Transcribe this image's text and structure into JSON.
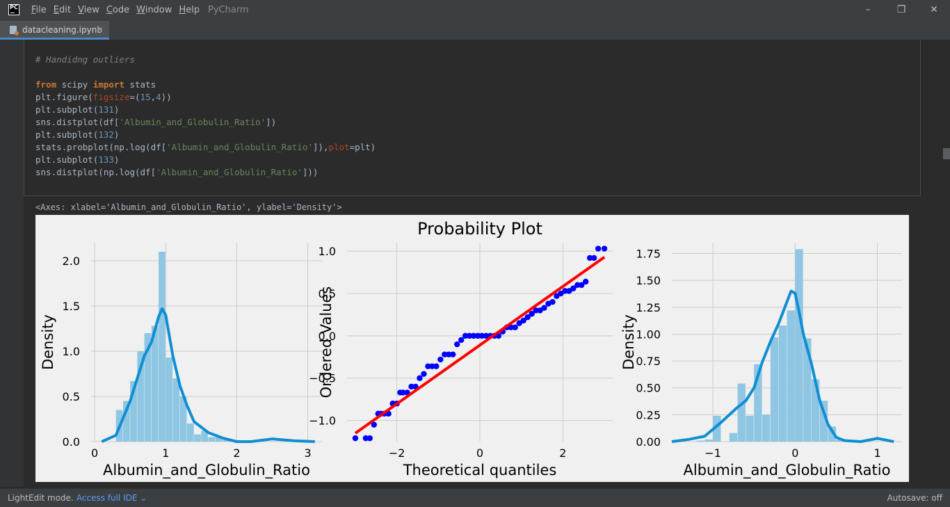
{
  "window": {
    "logo": "PC",
    "menu": [
      "File",
      "Edit",
      "View",
      "Code",
      "Window",
      "Help"
    ],
    "app_title": "PyCharm",
    "controls": {
      "minimize": "–",
      "restore": "❐",
      "close": "✕"
    }
  },
  "tab": {
    "file_name": "datacleaning.ipynb",
    "close": "×"
  },
  "code": {
    "comment": "# Handidng outliers",
    "lines": [
      "from scipy import stats",
      "plt.figure(figsize=(15,4))",
      "plt.subplot(131)",
      "sns.distplot(df['Albumin_and_Globulin_Ratio'])",
      "plt.subplot(132)",
      "stats.probplot(np.log(df['Albumin_and_Globulin_Ratio']),plot=plt)",
      "plt.subplot(133)",
      "sns.distplot(np.log(df['Albumin_and_Globulin_Ratio']))"
    ]
  },
  "output": {
    "text": "<Axes: xlabel='Albumin_and_Globulin_Ratio', ylabel='Density'>"
  },
  "status": {
    "mode": "LightEdit mode.",
    "link": "Access full IDE ⌄",
    "autosave": "Autosave: off"
  },
  "colors": {
    "hist": "#8fc6e4",
    "kde": "#0f8ed2",
    "points": "#0000ff",
    "fit_line": "#ff0000"
  },
  "chart_data": [
    {
      "type": "bar",
      "title": "",
      "xlabel": "Albumin_and_Globulin_Ratio",
      "ylabel": "Density",
      "xlim": [
        -0.05,
        3.2
      ],
      "ylim": [
        0,
        2.2
      ],
      "xticks": [
        "0",
        "1",
        "2",
        "3"
      ],
      "yticks": [
        "0.0",
        "0.5",
        "1.0",
        "1.5",
        "2.0"
      ],
      "bin_width": 0.1,
      "bin_starts": [
        0.3,
        0.4,
        0.5,
        0.6,
        0.7,
        0.8,
        0.9,
        1.0,
        1.1,
        1.2,
        1.3,
        1.4,
        1.5,
        1.6,
        1.7,
        1.8,
        1.9
      ],
      "bin_values": [
        0.35,
        0.45,
        0.67,
        1.0,
        1.2,
        1.28,
        2.1,
        0.93,
        0.7,
        0.5,
        0.2,
        0.08,
        0.12,
        0.05,
        0.05,
        0.02,
        0.02
      ],
      "kde": {
        "x": [
          0.1,
          0.3,
          0.5,
          0.7,
          0.8,
          0.9,
          0.95,
          1.0,
          1.1,
          1.2,
          1.3,
          1.4,
          1.6,
          1.8,
          2.0,
          2.2,
          2.5,
          2.8,
          3.1
        ],
        "y": [
          0.0,
          0.07,
          0.45,
          0.95,
          1.1,
          1.38,
          1.47,
          1.4,
          0.95,
          0.62,
          0.4,
          0.22,
          0.1,
          0.04,
          0.0,
          0.0,
          0.03,
          0.01,
          0.0
        ]
      },
      "grid": true
    },
    {
      "type": "scatter",
      "title": "Probability Plot",
      "xlabel": "Theoretical quantiles",
      "ylabel": "Ordered Values",
      "xlim": [
        -3.2,
        3.2
      ],
      "ylim": [
        -1.25,
        1.1
      ],
      "xticks": [
        -2,
        0,
        2
      ],
      "yticks": [
        -1.0,
        -0.5,
        0.0,
        0.5,
        1.0
      ],
      "series": [
        {
          "x": [
            -3.0,
            -2.75,
            -2.65,
            -2.55,
            -2.45,
            -2.38,
            -2.3,
            -2.2,
            -2.1,
            -2.0,
            -1.92,
            -1.85,
            -1.75,
            -1.65,
            -1.55,
            -1.45,
            -1.35,
            -1.25,
            -1.15,
            -1.05,
            -0.95,
            -0.85,
            -0.75,
            -0.65,
            -0.55,
            -0.45,
            -0.35,
            -0.25,
            -0.15,
            -0.05,
            0.05,
            0.15,
            0.25,
            0.35,
            0.45,
            0.55,
            0.65,
            0.75,
            0.85,
            0.95,
            1.05,
            1.15,
            1.25,
            1.35,
            1.45,
            1.55,
            1.65,
            1.75,
            1.85,
            1.95,
            2.05,
            2.15,
            2.25,
            2.35,
            2.45,
            2.55,
            2.65,
            2.75,
            2.85,
            3.0
          ],
          "y": [
            -1.21,
            -1.21,
            -1.21,
            -1.05,
            -0.92,
            -0.92,
            -0.92,
            -0.92,
            -0.8,
            -0.8,
            -0.67,
            -0.67,
            -0.67,
            -0.6,
            -0.6,
            -0.5,
            -0.45,
            -0.36,
            -0.36,
            -0.36,
            -0.28,
            -0.22,
            -0.22,
            -0.22,
            -0.1,
            -0.05,
            0.0,
            0.0,
            0.0,
            0.0,
            0.0,
            0.0,
            0.0,
            0.0,
            0.0,
            0.05,
            0.1,
            0.1,
            0.1,
            0.15,
            0.18,
            0.22,
            0.26,
            0.3,
            0.3,
            0.33,
            0.38,
            0.4,
            0.47,
            0.5,
            0.53,
            0.53,
            0.56,
            0.6,
            0.6,
            0.64,
            0.92,
            0.92,
            1.03,
            1.03
          ]
        }
      ],
      "fit_line": {
        "x": [
          -3.0,
          3.0
        ],
        "y": [
          -1.15,
          0.93
        ]
      },
      "grid": true
    },
    {
      "type": "bar",
      "title": "",
      "xlabel": "Albumin_and_Globulin_Ratio",
      "ylabel": "Density",
      "xlim": [
        -1.5,
        1.3
      ],
      "ylim": [
        0,
        1.85
      ],
      "xticks": [
        "−1",
        "0",
        "1"
      ],
      "yticks": [
        "0.00",
        "0.25",
        "0.50",
        "0.75",
        "1.00",
        "1.25",
        "1.50",
        "1.75"
      ],
      "bin_width": 0.1,
      "bin_starts": [
        -1.2,
        -1.1,
        -1.0,
        -0.9,
        -0.8,
        -0.7,
        -0.6,
        -0.5,
        -0.4,
        -0.3,
        -0.2,
        -0.1,
        0.0,
        0.1,
        0.2,
        0.3,
        0.4,
        0.5
      ],
      "bin_values": [
        0.01,
        0.02,
        0.24,
        0.0,
        0.08,
        0.54,
        0.24,
        0.72,
        0.25,
        0.97,
        1.08,
        1.22,
        1.79,
        0.96,
        0.58,
        0.38,
        0.14,
        0.02
      ],
      "kde": {
        "x": [
          -1.5,
          -1.3,
          -1.1,
          -0.9,
          -0.7,
          -0.6,
          -0.5,
          -0.4,
          -0.3,
          -0.2,
          -0.1,
          -0.05,
          0.0,
          0.05,
          0.1,
          0.2,
          0.3,
          0.4,
          0.5,
          0.6,
          0.8,
          1.0,
          1.2
        ],
        "y": [
          0.0,
          0.02,
          0.05,
          0.18,
          0.32,
          0.38,
          0.5,
          0.74,
          0.93,
          1.1,
          1.3,
          1.4,
          1.38,
          1.2,
          1.0,
          0.72,
          0.38,
          0.16,
          0.04,
          0.01,
          0.0,
          0.03,
          0.0
        ]
      },
      "grid": true
    }
  ]
}
